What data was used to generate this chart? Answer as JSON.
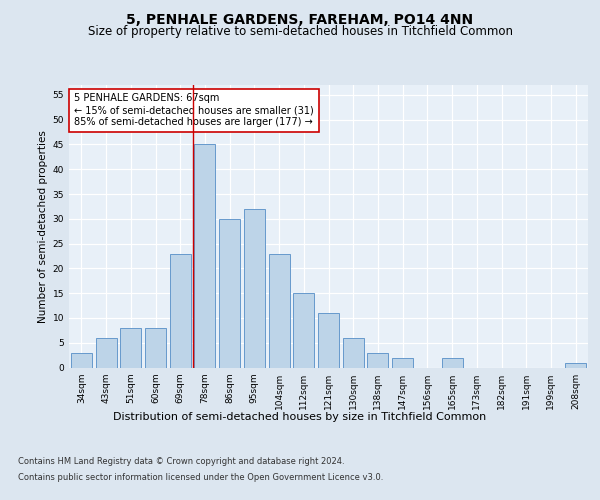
{
  "title1": "5, PENHALE GARDENS, FAREHAM, PO14 4NN",
  "title2": "Size of property relative to semi-detached houses in Titchfield Common",
  "xlabel": "Distribution of semi-detached houses by size in Titchfield Common",
  "ylabel": "Number of semi-detached properties",
  "categories": [
    "34sqm",
    "43sqm",
    "51sqm",
    "60sqm",
    "69sqm",
    "78sqm",
    "86sqm",
    "95sqm",
    "104sqm",
    "112sqm",
    "121sqm",
    "130sqm",
    "138sqm",
    "147sqm",
    "156sqm",
    "165sqm",
    "173sqm",
    "182sqm",
    "191sqm",
    "199sqm",
    "208sqm"
  ],
  "values": [
    3,
    6,
    8,
    8,
    23,
    45,
    30,
    32,
    23,
    15,
    11,
    6,
    3,
    2,
    0,
    2,
    0,
    0,
    0,
    0,
    1
  ],
  "bar_color": "#bdd4e8",
  "bar_edge_color": "#6699cc",
  "annotation_text": "5 PENHALE GARDENS: 67sqm\n← 15% of semi-detached houses are smaller (31)\n85% of semi-detached houses are larger (177) →",
  "annotation_box_color": "white",
  "annotation_box_edge": "#cc0000",
  "vline_color": "#cc0000",
  "vline_x": 4.5,
  "ylim": [
    0,
    57
  ],
  "yticks": [
    0,
    5,
    10,
    15,
    20,
    25,
    30,
    35,
    40,
    45,
    50,
    55
  ],
  "footer1": "Contains HM Land Registry data © Crown copyright and database right 2024.",
  "footer2": "Contains public sector information licensed under the Open Government Licence v3.0.",
  "bg_color": "#dce6f0",
  "plot_bg_color": "#e8f0f8",
  "title1_fontsize": 10,
  "title2_fontsize": 8.5,
  "ylabel_fontsize": 7.5,
  "xlabel_fontsize": 8,
  "tick_fontsize": 6.5,
  "annot_fontsize": 7,
  "footer_fontsize": 6
}
